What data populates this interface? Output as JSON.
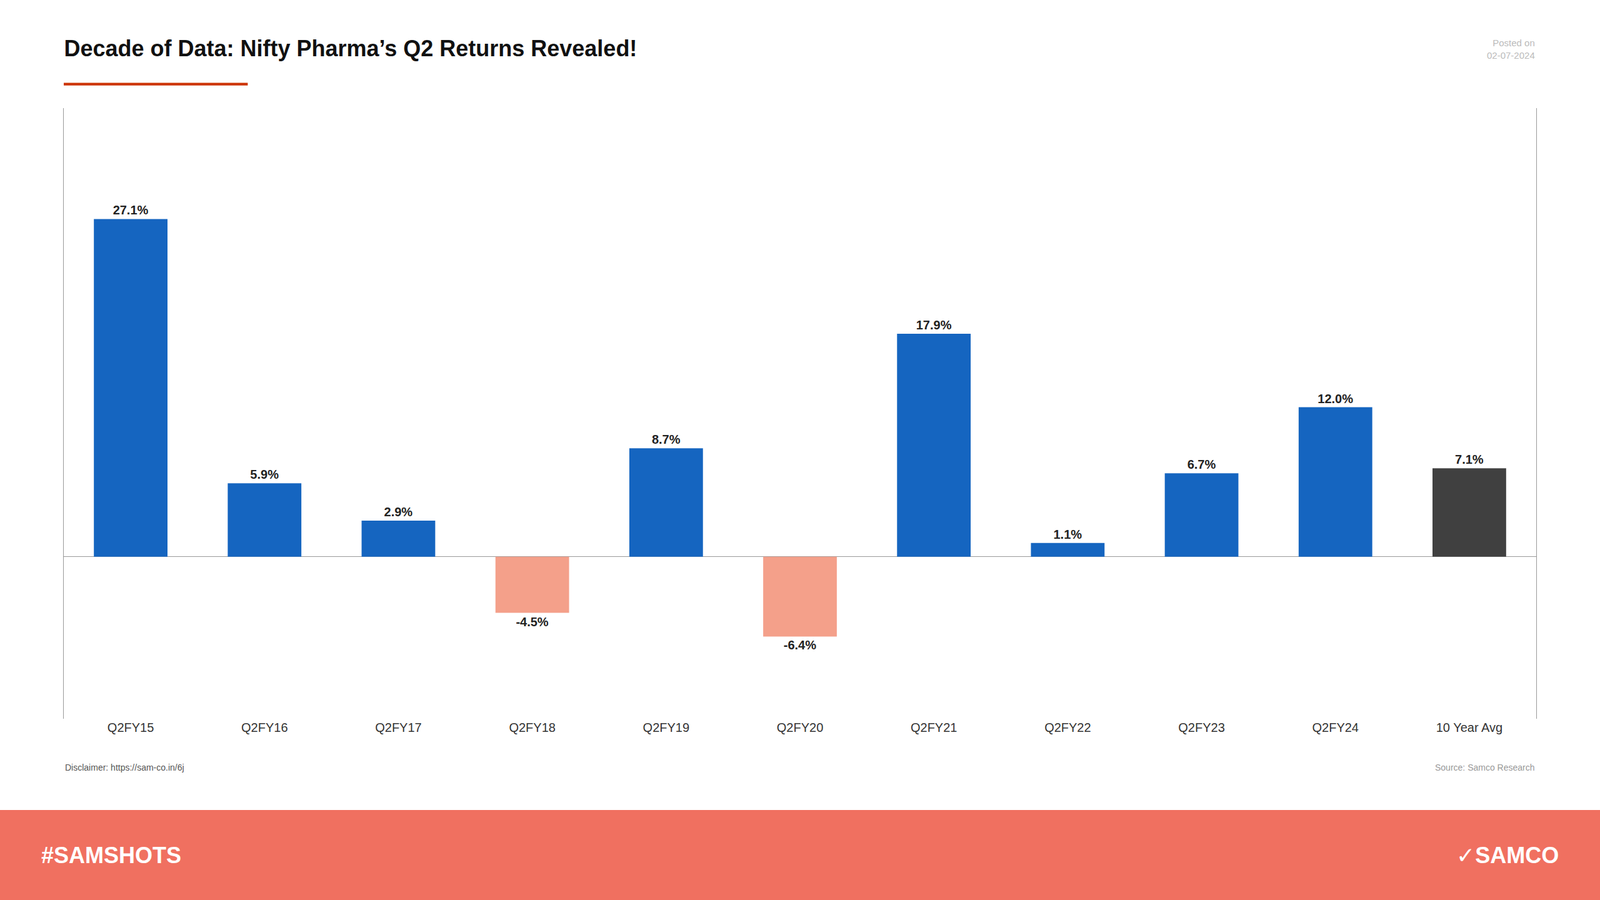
{
  "chart_data": {
    "type": "bar",
    "title": "Decade of Data: Nifty Pharma’s Q2 Returns Revealed!",
    "categories": [
      "Q2FY15",
      "Q2FY16",
      "Q2FY17",
      "Q2FY18",
      "Q2FY19",
      "Q2FY20",
      "Q2FY21",
      "Q2FY22",
      "Q2FY23",
      "Q2FY24",
      "10 Year Avg"
    ],
    "values": [
      27.1,
      5.9,
      2.9,
      -4.5,
      8.7,
      -6.4,
      17.9,
      1.1,
      6.7,
      12.0,
      7.1
    ],
    "value_labels": [
      "27.1%",
      "5.9%",
      "2.9%",
      "-4.5%",
      "8.7%",
      "-6.4%",
      "17.9%",
      "1.1%",
      "6.7%",
      "12.0%",
      "7.1%"
    ],
    "colors": [
      "#1565c0",
      "#1565c0",
      "#1565c0",
      "#f4a08a",
      "#1565c0",
      "#f4a08a",
      "#1565c0",
      "#1565c0",
      "#1565c0",
      "#1565c0",
      "#404040"
    ],
    "ylim": [
      -13,
      36
    ],
    "tick_labels": "x",
    "grid": false,
    "data_labels": true,
    "annotations": [
      "Posted on\n02-07-2024",
      "Disclaimer: https://sam-co.in/6j",
      "Source: Samco Research",
      "#SAMSHOTS",
      "✓SAMCO"
    ]
  }
}
